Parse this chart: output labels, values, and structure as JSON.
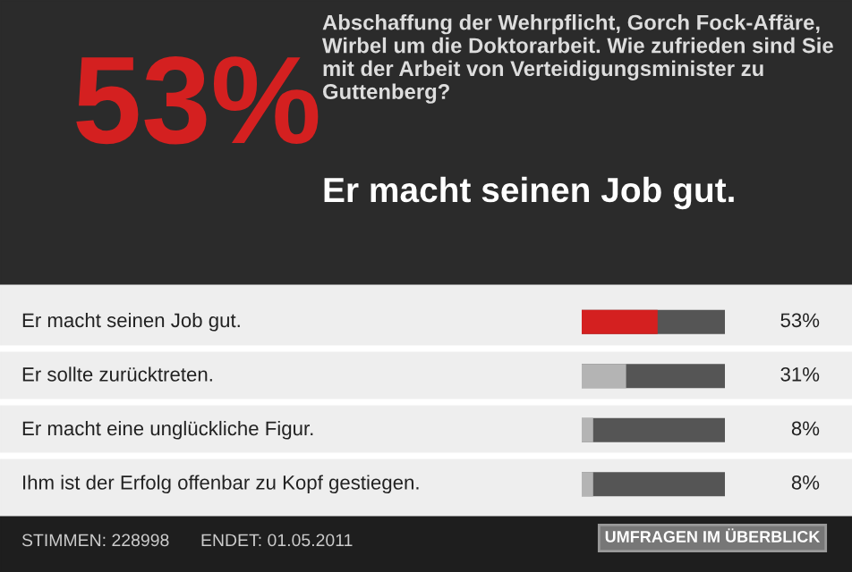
{
  "chart_data": {
    "type": "bar",
    "orientation": "horizontal",
    "title": "Abschaffung der Wehrpflicht, Gorch Fock-Affäre, Wirbel um die Doktorarbeit. Wie zufrieden sind Sie mit der Arbeit von Verteidigungsminister zu Guttenberg?",
    "subtitle": "Er macht seinen Job gut.",
    "categories": [
      "Er macht seinen Job gut.",
      "Er sollte zurücktreten.",
      "Er macht eine unglückliche Figur.",
      "Ihm ist der Erfolg offenbar zu Kopf gestiegen."
    ],
    "values": [
      53,
      31,
      8,
      8
    ],
    "colors": [
      "#d42020",
      "#b4b4b4",
      "#b4b4b4",
      "#b4b4b4"
    ],
    "value_labels": [
      "53%",
      "31%",
      "8%",
      "8%"
    ],
    "xlim": [
      0,
      100
    ],
    "annotations": [
      "53%",
      "STIMMEN: 228998",
      "ENDET: 01.05.2011",
      "UMFRAGEN IM ÜBERBLICK"
    ]
  }
}
